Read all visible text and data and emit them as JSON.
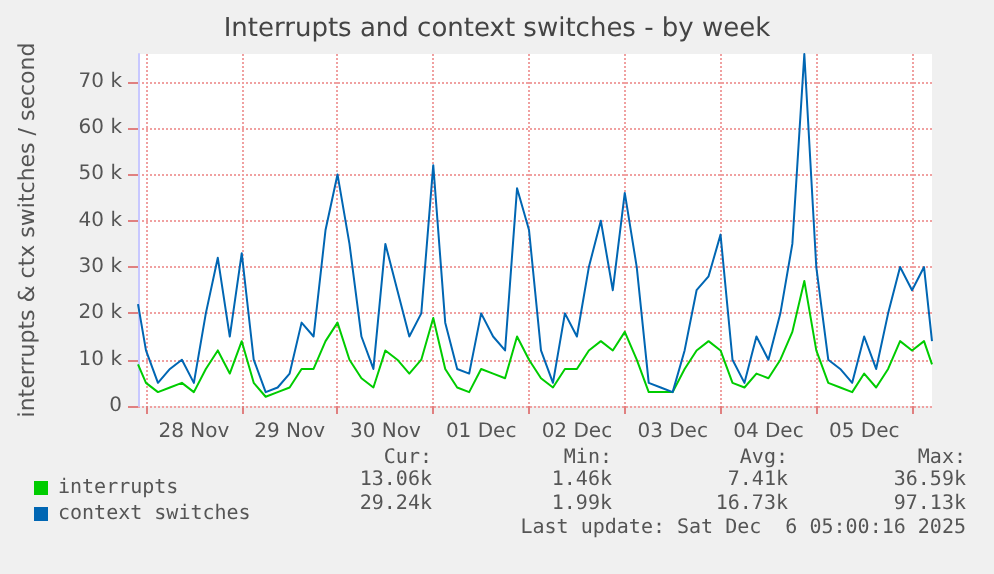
{
  "chart_data": {
    "type": "line",
    "title": "Interrupts and context switches - by week",
    "ylabel": "interrupts & ctx switches / second",
    "x": [
      "2025-11-27T22:00",
      "2025-11-28T00:00",
      "2025-11-28T03:00",
      "2025-11-28T06:00",
      "2025-11-28T09:00",
      "2025-11-28T12:00",
      "2025-11-28T15:00",
      "2025-11-28T18:00",
      "2025-11-28T21:00",
      "2025-11-29T00:00",
      "2025-11-29T03:00",
      "2025-11-29T06:00",
      "2025-11-29T09:00",
      "2025-11-29T12:00",
      "2025-11-29T15:00",
      "2025-11-29T18:00",
      "2025-11-29T21:00",
      "2025-11-30T00:00",
      "2025-11-30T03:00",
      "2025-11-30T06:00",
      "2025-11-30T09:00",
      "2025-11-30T12:00",
      "2025-11-30T15:00",
      "2025-11-30T18:00",
      "2025-11-30T21:00",
      "2025-12-01T00:00",
      "2025-12-01T03:00",
      "2025-12-01T06:00",
      "2025-12-01T09:00",
      "2025-12-01T12:00",
      "2025-12-01T15:00",
      "2025-12-01T18:00",
      "2025-12-01T21:00",
      "2025-12-02T00:00",
      "2025-12-02T03:00",
      "2025-12-02T06:00",
      "2025-12-02T09:00",
      "2025-12-02T12:00",
      "2025-12-02T15:00",
      "2025-12-02T18:00",
      "2025-12-02T21:00",
      "2025-12-03T00:00",
      "2025-12-03T03:00",
      "2025-12-03T06:00",
      "2025-12-03T09:00",
      "2025-12-03T12:00",
      "2025-12-03T15:00",
      "2025-12-03T18:00",
      "2025-12-03T21:00",
      "2025-12-04T00:00",
      "2025-12-04T03:00",
      "2025-12-04T06:00",
      "2025-12-04T09:00",
      "2025-12-04T12:00",
      "2025-12-04T15:00",
      "2025-12-04T18:00",
      "2025-12-04T21:00",
      "2025-12-05T00:00",
      "2025-12-05T03:00",
      "2025-12-05T06:00",
      "2025-12-05T09:00",
      "2025-12-05T12:00",
      "2025-12-05T15:00",
      "2025-12-05T18:00",
      "2025-12-05T21:00",
      "2025-12-06T00:00",
      "2025-12-06T03:00",
      "2025-12-06T05:00"
    ],
    "series": [
      {
        "name": "interrupts",
        "color": "#00cc00",
        "values": [
          9000,
          5000,
          3000,
          4000,
          5000,
          3000,
          8000,
          12000,
          7000,
          14000,
          5000,
          2000,
          3000,
          4000,
          8000,
          8000,
          14000,
          18000,
          10000,
          6000,
          4000,
          12000,
          10000,
          7000,
          10000,
          19000,
          8000,
          4000,
          3000,
          8000,
          7000,
          6000,
          15000,
          10000,
          6000,
          4000,
          8000,
          8000,
          12000,
          14000,
          12000,
          16000,
          10000,
          3000,
          3000,
          3000,
          8000,
          12000,
          14000,
          12000,
          5000,
          4000,
          7000,
          6000,
          10000,
          16000,
          27000,
          12000,
          5000,
          4000,
          3000,
          7000,
          4000,
          8000,
          14000,
          12000,
          14000,
          9000
        ]
      },
      {
        "name": "context switches",
        "color": "#0066b3",
        "values": [
          22000,
          12000,
          5000,
          8000,
          10000,
          5000,
          20000,
          32000,
          15000,
          33000,
          10000,
          3000,
          4000,
          7000,
          18000,
          15000,
          38000,
          50000,
          35000,
          15000,
          8000,
          35000,
          25000,
          15000,
          20000,
          52000,
          18000,
          8000,
          7000,
          20000,
          15000,
          12000,
          47000,
          38000,
          12000,
          5000,
          20000,
          15000,
          30000,
          40000,
          25000,
          46000,
          30000,
          5000,
          4000,
          3000,
          12000,
          25000,
          28000,
          37000,
          10000,
          5000,
          15000,
          10000,
          20000,
          35000,
          76000,
          30000,
          10000,
          8000,
          5000,
          15000,
          8000,
          20000,
          30000,
          25000,
          30000,
          14000
        ]
      }
    ],
    "xlim": [
      "2025-11-27T22:00",
      "2025-12-06T05:00"
    ],
    "xticks": [
      {
        "value": "2025-11-28T00:00",
        "label": null
      },
      {
        "value": "2025-11-28T12:00",
        "label": "28 Nov"
      },
      {
        "value": "2025-11-29T00:00",
        "label": null
      },
      {
        "value": "2025-11-29T12:00",
        "label": "29 Nov"
      },
      {
        "value": "2025-11-30T00:00",
        "label": null
      },
      {
        "value": "2025-11-30T12:00",
        "label": "30 Nov"
      },
      {
        "value": "2025-12-01T00:00",
        "label": null
      },
      {
        "value": "2025-12-01T12:00",
        "label": "01 Dec"
      },
      {
        "value": "2025-12-02T00:00",
        "label": null
      },
      {
        "value": "2025-12-02T12:00",
        "label": "02 Dec"
      },
      {
        "value": "2025-12-03T00:00",
        "label": null
      },
      {
        "value": "2025-12-03T12:00",
        "label": "03 Dec"
      },
      {
        "value": "2025-12-04T00:00",
        "label": null
      },
      {
        "value": "2025-12-04T12:00",
        "label": "04 Dec"
      },
      {
        "value": "2025-12-05T00:00",
        "label": null
      },
      {
        "value": "2025-12-05T12:00",
        "label": "05 Dec"
      },
      {
        "value": "2025-12-06T00:00",
        "label": null
      }
    ],
    "ylim": [
      0,
      76000
    ],
    "yticks": [
      {
        "value": 0,
        "label": "0"
      },
      {
        "value": 10000,
        "label": "10 k"
      },
      {
        "value": 20000,
        "label": "20 k"
      },
      {
        "value": 30000,
        "label": "30 k"
      },
      {
        "value": 40000,
        "label": "40 k"
      },
      {
        "value": 50000,
        "label": "50 k"
      },
      {
        "value": 60000,
        "label": "60 k"
      },
      {
        "value": 70000,
        "label": "70 k"
      }
    ],
    "grid": true,
    "legend": "bottom left",
    "marker": "none",
    "line_style": "solid",
    "annotations": [
      "Cur:",
      "Min:",
      "Avg:",
      "Max:",
      "13.06k",
      "1.46k",
      "7.41k",
      "36.59k",
      "29.24k",
      "1.99k",
      "16.73k",
      "97.13k",
      "Last update: Sat Dec  6 05:00:16 2025"
    ]
  }
}
